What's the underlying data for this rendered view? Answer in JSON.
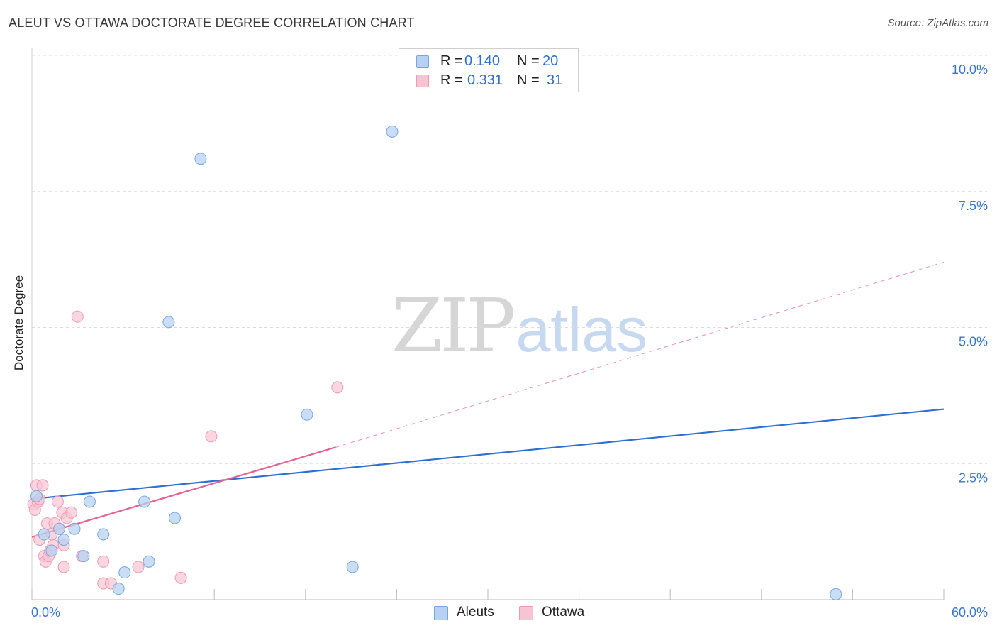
{
  "title": "ALEUT VS OTTAWA DOCTORATE DEGREE CORRELATION CHART",
  "source": "Source: ZipAtlas.com",
  "watermark": {
    "zip": "ZIP",
    "atlas": "atlas"
  },
  "colors": {
    "blue_fill": "#b7d1f2",
    "blue_stroke": "#7aa5e3",
    "blue_line": "#2e6fd4",
    "pink_fill": "#f8c4d3",
    "pink_stroke": "#ee9ab3",
    "pink_line": "#e3628f",
    "grid": "#dcdcdc",
    "tick_text": "#3a75cf"
  },
  "legend_top": [
    {
      "r_label": "R =",
      "r_value": "0.140",
      "n_label": "N =",
      "n_value": "20"
    },
    {
      "r_label": "R =",
      "r_value": "0.331",
      "n_label": "N =",
      "n_value": "31"
    }
  ],
  "legend_bottom": [
    "Aleuts",
    "Ottawa"
  ],
  "chart_data": {
    "type": "scatter",
    "title": "ALEUT VS OTTAWA DOCTORATE DEGREE CORRELATION CHART",
    "xlabel": "",
    "ylabel": "Doctorate Degree",
    "xlim": [
      0,
      60
    ],
    "ylim": [
      0,
      10
    ],
    "x_tick_labels": [
      "0.0%",
      "60.0%"
    ],
    "y_ticks": [
      2.5,
      5.0,
      7.5,
      10.0
    ],
    "y_tick_labels": [
      "2.5%",
      "5.0%",
      "7.5%",
      "10.0%"
    ],
    "grid": true,
    "series": [
      {
        "name": "Aleuts",
        "points": [
          [
            0.3,
            1.9
          ],
          [
            0.8,
            1.2
          ],
          [
            1.3,
            0.9
          ],
          [
            1.8,
            1.3
          ],
          [
            2.1,
            1.1
          ],
          [
            2.8,
            1.3
          ],
          [
            3.4,
            0.8
          ],
          [
            3.8,
            1.8
          ],
          [
            4.7,
            1.2
          ],
          [
            5.7,
            0.2
          ],
          [
            6.1,
            0.5
          ],
          [
            7.4,
            1.8
          ],
          [
            7.7,
            0.7
          ],
          [
            9.0,
            5.1
          ],
          [
            9.4,
            1.5
          ],
          [
            11.1,
            8.1
          ],
          [
            18.1,
            3.4
          ],
          [
            21.1,
            0.6
          ],
          [
            23.7,
            8.6
          ],
          [
            52.9,
            0.1
          ]
        ],
        "trend": {
          "x": [
            0,
            60
          ],
          "y": [
            1.85,
            3.5
          ],
          "style": "solid"
        }
      },
      {
        "name": "Ottawa",
        "points": [
          [
            0.1,
            1.75
          ],
          [
            0.2,
            1.65
          ],
          [
            0.3,
            2.1
          ],
          [
            0.4,
            1.8
          ],
          [
            0.5,
            1.85
          ],
          [
            0.5,
            1.1
          ],
          [
            0.7,
            2.1
          ],
          [
            0.8,
            0.8
          ],
          [
            0.9,
            0.7
          ],
          [
            1.0,
            1.4
          ],
          [
            1.1,
            0.8
          ],
          [
            1.2,
            0.9
          ],
          [
            1.4,
            1.0
          ],
          [
            1.5,
            1.4
          ],
          [
            1.7,
            1.8
          ],
          [
            1.8,
            1.3
          ],
          [
            2.0,
            1.6
          ],
          [
            2.1,
            1.0
          ],
          [
            2.1,
            0.6
          ],
          [
            2.3,
            1.5
          ],
          [
            2.6,
            1.6
          ],
          [
            3.0,
            5.2
          ],
          [
            3.3,
            0.8
          ],
          [
            4.7,
            0.7
          ],
          [
            4.7,
            0.3
          ],
          [
            5.2,
            0.3
          ],
          [
            7.0,
            0.6
          ],
          [
            9.8,
            0.4
          ],
          [
            11.8,
            3.0
          ],
          [
            20.1,
            3.9
          ],
          [
            1.3,
            1.2
          ]
        ],
        "trend": {
          "x": [
            0,
            20
          ],
          "y": [
            1.15,
            2.8
          ],
          "style": "solid",
          "extension_x": [
            20,
            60
          ],
          "extension_y": [
            2.8,
            6.2
          ],
          "extension_style": "dashed"
        }
      }
    ]
  }
}
